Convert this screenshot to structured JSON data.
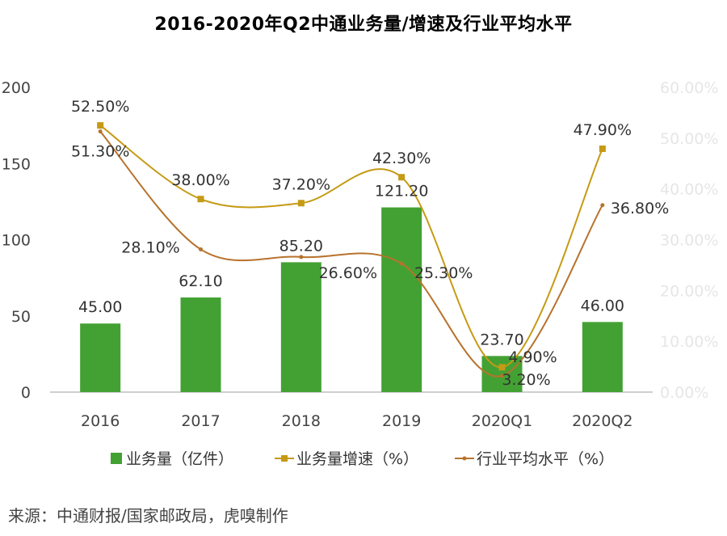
{
  "page": {
    "title": "2016-2020年Q2中通业务量/增速及行业平均水平",
    "source": "来源：中通财报/国家邮政局，虎嗅制作"
  },
  "colors": {
    "bar": "#43a133",
    "growth_line": "#c59a14",
    "industry_line": "#b8722c",
    "axis": "#bfbfbf"
  },
  "chart_data": {
    "type": "bar",
    "title": "2016-2020年Q2中通业务量/增速及行业平均水平",
    "categories": [
      "2016",
      "2017",
      "2018",
      "2019",
      "2020Q1",
      "2020Q2"
    ],
    "ylim": [
      0,
      200
    ],
    "yticks": [
      "0",
      "50",
      "100",
      "150",
      "200"
    ],
    "y2lim": [
      0,
      60
    ],
    "y2ticks": [
      "0.00%",
      "10.00%",
      "20.00%",
      "30.00%",
      "40.00%",
      "50.00%",
      "60.00%"
    ],
    "legend_position": "bottom",
    "series": [
      {
        "name": "业务量（亿件）",
        "type": "bar",
        "axis": "left",
        "values": [
          45.0,
          62.1,
          85.2,
          121.2,
          23.7,
          46.0
        ],
        "labels": [
          "45.00",
          "62.10",
          "85.20",
          "121.20",
          "23.70",
          "46.00"
        ]
      },
      {
        "name": "业务量增速（%）",
        "type": "line",
        "marker": "square",
        "axis": "right",
        "values": [
          52.5,
          38.0,
          37.2,
          42.3,
          4.9,
          47.9
        ],
        "labels": [
          "52.50%",
          "38.00%",
          "37.20%",
          "42.30%",
          "4.90%",
          "47.90%"
        ]
      },
      {
        "name": "行业平均水平（%）",
        "type": "line",
        "marker": "dot",
        "axis": "right",
        "values": [
          51.3,
          28.1,
          26.6,
          25.3,
          3.2,
          36.8
        ],
        "labels": [
          "51.30%",
          "28.10%",
          "26.60%",
          "25.30%",
          "3.20%",
          "36.80%"
        ]
      }
    ]
  }
}
